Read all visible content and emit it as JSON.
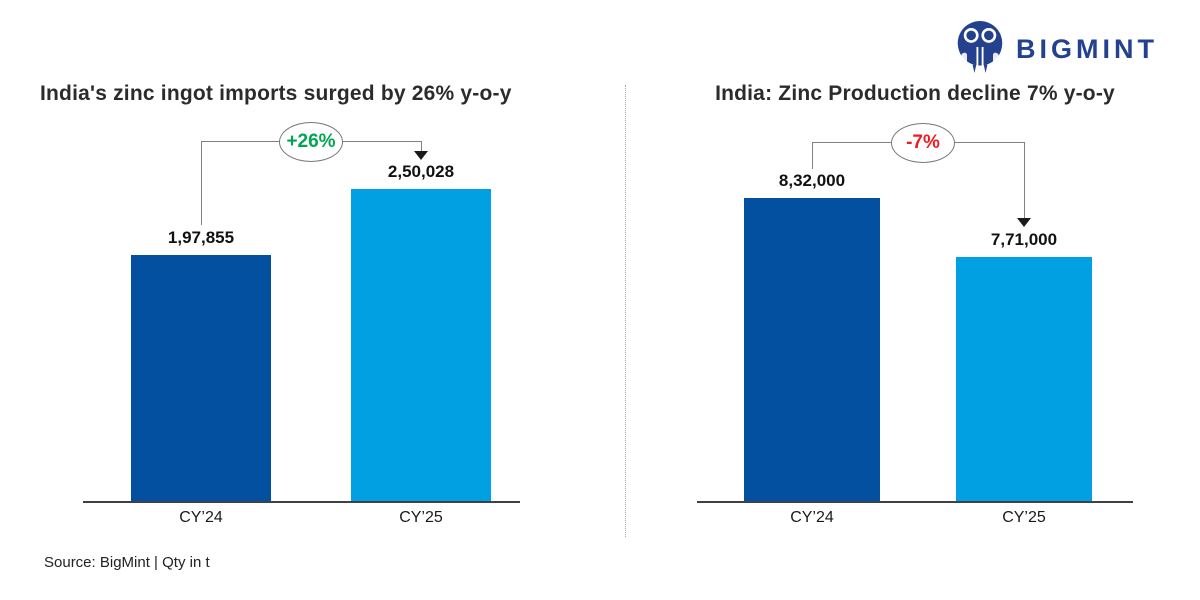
{
  "brand": {
    "name": "BIGMINT",
    "color": "#24418e",
    "icon": "bigmint-people-icon"
  },
  "source_note": "Source: BigMint  |  Qty in t",
  "colors": {
    "bar_cy24": "#0350a0",
    "bar_cy25": "#00a0e2",
    "positive": "#00a651",
    "negative": "#ed1c24",
    "bracket_line": "#808285"
  },
  "chart_data": [
    {
      "type": "bar",
      "title": "India's zinc ingot imports surged by 26% y-o-y",
      "categories": [
        "CY’24",
        "CY’25"
      ],
      "values": [
        197855,
        250028
      ],
      "value_labels": [
        "1,97,855",
        "2,50,028"
      ],
      "change_label": "+26%",
      "change_color": "#00a651",
      "unit": "t",
      "grid": "off",
      "legend": "none"
    },
    {
      "type": "bar",
      "title": "India: Zinc Production decline 7% y-o-y",
      "categories": [
        "CY’24",
        "CY’25"
      ],
      "values": [
        832000,
        771000
      ],
      "value_labels": [
        "8,32,000",
        "7,71,000"
      ],
      "change_label": "-7%",
      "change_color": "#ed1c24",
      "unit": "t",
      "grid": "off",
      "legend": "none"
    }
  ]
}
